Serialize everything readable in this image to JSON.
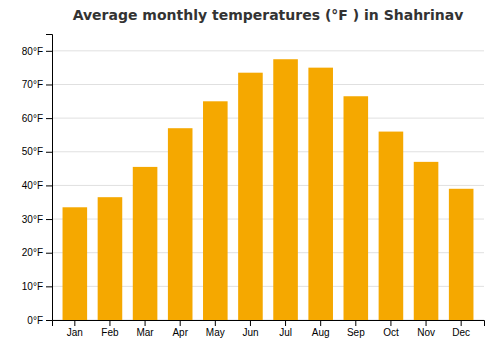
{
  "chart_data": {
    "type": "bar",
    "title": "Average monthly temperatures (°F ) in Shahrinav",
    "categories": [
      "Jan",
      "Feb",
      "Mar",
      "Apr",
      "May",
      "Jun",
      "Jul",
      "Aug",
      "Sep",
      "Oct",
      "Nov",
      "Dec"
    ],
    "values": [
      33.5,
      36.5,
      45.5,
      57,
      65,
      73.5,
      77.5,
      75,
      66.5,
      56,
      47,
      39
    ],
    "color": "#F5A800",
    "ylim": [
      0,
      85
    ],
    "yticks": [
      {
        "value": 0,
        "label": "0°F"
      },
      {
        "value": 10,
        "label": "10°F"
      },
      {
        "value": 20,
        "label": "20°F"
      },
      {
        "value": 30,
        "label": "30°F"
      },
      {
        "value": 40,
        "label": "40°F"
      },
      {
        "value": 50,
        "label": "50°F"
      },
      {
        "value": 60,
        "label": "60°F"
      },
      {
        "value": 70,
        "label": "70°F"
      },
      {
        "value": 80,
        "label": "80°F"
      }
    ],
    "grid": true
  }
}
